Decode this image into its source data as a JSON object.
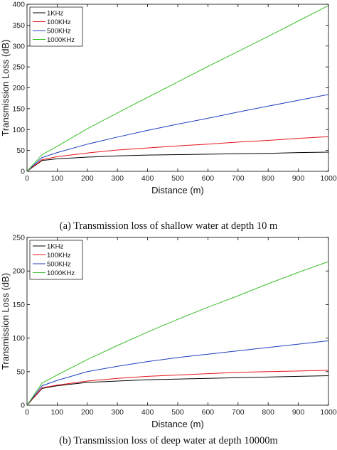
{
  "charts": [
    {
      "caption": "(a) Transmission loss of shallow water at depth 10 m",
      "chart_data": {
        "type": "line",
        "title": "",
        "xlabel": "Distance (m)",
        "ylabel": "Transmission Loss (dB)",
        "xlim": [
          0,
          1000
        ],
        "ylim": [
          0,
          400
        ],
        "xticks": [
          0,
          100,
          200,
          300,
          400,
          500,
          600,
          700,
          800,
          900,
          1000
        ],
        "yticks": [
          0,
          50,
          100,
          150,
          200,
          250,
          300,
          350,
          400
        ],
        "grid": false,
        "legend_position": "top-left",
        "x": [
          0,
          50,
          100,
          200,
          300,
          400,
          500,
          600,
          700,
          800,
          900,
          1000
        ],
        "series": [
          {
            "name": "1KHz",
            "color": "#000000",
            "values": [
              0,
              26,
              30,
              34,
              37,
              39,
              40,
              41,
              42,
              43,
              45,
              46
            ]
          },
          {
            "name": "100KHz",
            "color": "#e8141b",
            "values": [
              0,
              28,
              35,
              44,
              51,
              56,
              61,
              65,
              70,
              74,
              79,
              83
            ]
          },
          {
            "name": "500KHz",
            "color": "#1f3fbf",
            "values": [
              0,
              33,
              45,
              65,
              82,
              98,
              113,
              127,
              142,
              156,
              170,
              184
            ]
          },
          {
            "name": "1000KHz",
            "color": "#3cc02a",
            "values": [
              0,
              40,
              60,
              102,
              140,
              177,
              214,
              251,
              287,
              323,
              360,
              397
            ]
          }
        ]
      }
    },
    {
      "caption": "(b) Transmission loss of deep water at depth 10000m",
      "chart_data": {
        "type": "line",
        "title": "",
        "xlabel": "Distance (m)",
        "ylabel": "Transmission Loss (dB)",
        "xlim": [
          0,
          1000
        ],
        "ylim": [
          0,
          250
        ],
        "xticks": [
          0,
          100,
          200,
          300,
          400,
          500,
          600,
          700,
          800,
          900,
          1000
        ],
        "yticks": [
          0,
          50,
          100,
          150,
          200,
          250
        ],
        "grid": false,
        "legend_position": "top-left",
        "x": [
          0,
          50,
          100,
          200,
          300,
          400,
          500,
          600,
          700,
          800,
          900,
          1000
        ],
        "series": [
          {
            "name": "1KHz",
            "color": "#000000",
            "values": [
              0,
              25,
              29,
              34,
              36,
              38,
              39,
              40,
              41,
              42,
              43,
              44
            ]
          },
          {
            "name": "100KHz",
            "color": "#e8141b",
            "values": [
              0,
              26,
              30,
              36,
              40,
              43,
              45,
              47,
              49,
              50,
              51,
              52
            ]
          },
          {
            "name": "500KHz",
            "color": "#1f3fbf",
            "values": [
              0,
              29,
              37,
              50,
              58,
              65,
              71,
              76,
              81,
              86,
              91,
              96
            ]
          },
          {
            "name": "1000KHz",
            "color": "#3cc02a",
            "values": [
              0,
              33,
              45,
              68,
              89,
              109,
              128,
              146,
              163,
              181,
              198,
              214
            ]
          }
        ]
      }
    }
  ]
}
